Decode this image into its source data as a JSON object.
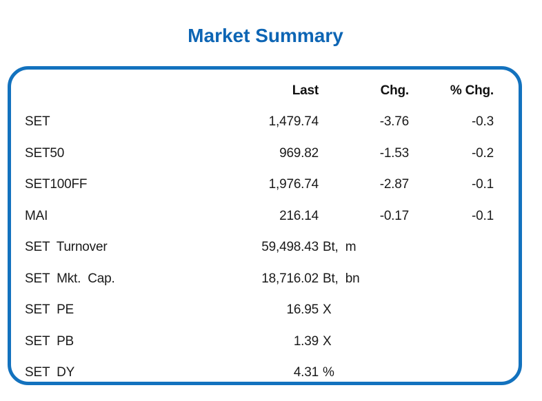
{
  "title": "Market Summary",
  "colors": {
    "title_blue": "#0d65b4",
    "panel_border_blue": "#1372be",
    "text_black": "#1a1a1a"
  },
  "table": {
    "headers": {
      "last": "Last",
      "chg": "Chg.",
      "pct_chg": "% Chg."
    },
    "rows": [
      {
        "label": "SET",
        "last": "1,479.74",
        "unit": "",
        "chg": "-3.76",
        "pct_chg": "-0.3"
      },
      {
        "label": "SET50",
        "last": "969.82",
        "unit": "",
        "chg": "-1.53",
        "pct_chg": "-0.2"
      },
      {
        "label": "SET100FF",
        "last": "1,976.74",
        "unit": "",
        "chg": "-2.87",
        "pct_chg": "-0.1"
      },
      {
        "label": "MAI",
        "last": "216.14",
        "unit": "",
        "chg": "-0.17",
        "pct_chg": "-0.1"
      },
      {
        "label": "SET Turnover",
        "last": "59,498.43",
        "unit": "Bt, m",
        "chg": "",
        "pct_chg": ""
      },
      {
        "label": "SET Mkt. Cap.",
        "last": "18,716.02",
        "unit": "Bt, bn",
        "chg": "",
        "pct_chg": ""
      },
      {
        "label": "SET PE",
        "last": "16.95",
        "unit": "X",
        "chg": "",
        "pct_chg": ""
      },
      {
        "label": "SET PB",
        "last": "1.39",
        "unit": "X",
        "chg": "",
        "pct_chg": ""
      },
      {
        "label": "SET DY",
        "last": "4.31",
        "unit": "%",
        "chg": "",
        "pct_chg": ""
      }
    ]
  }
}
